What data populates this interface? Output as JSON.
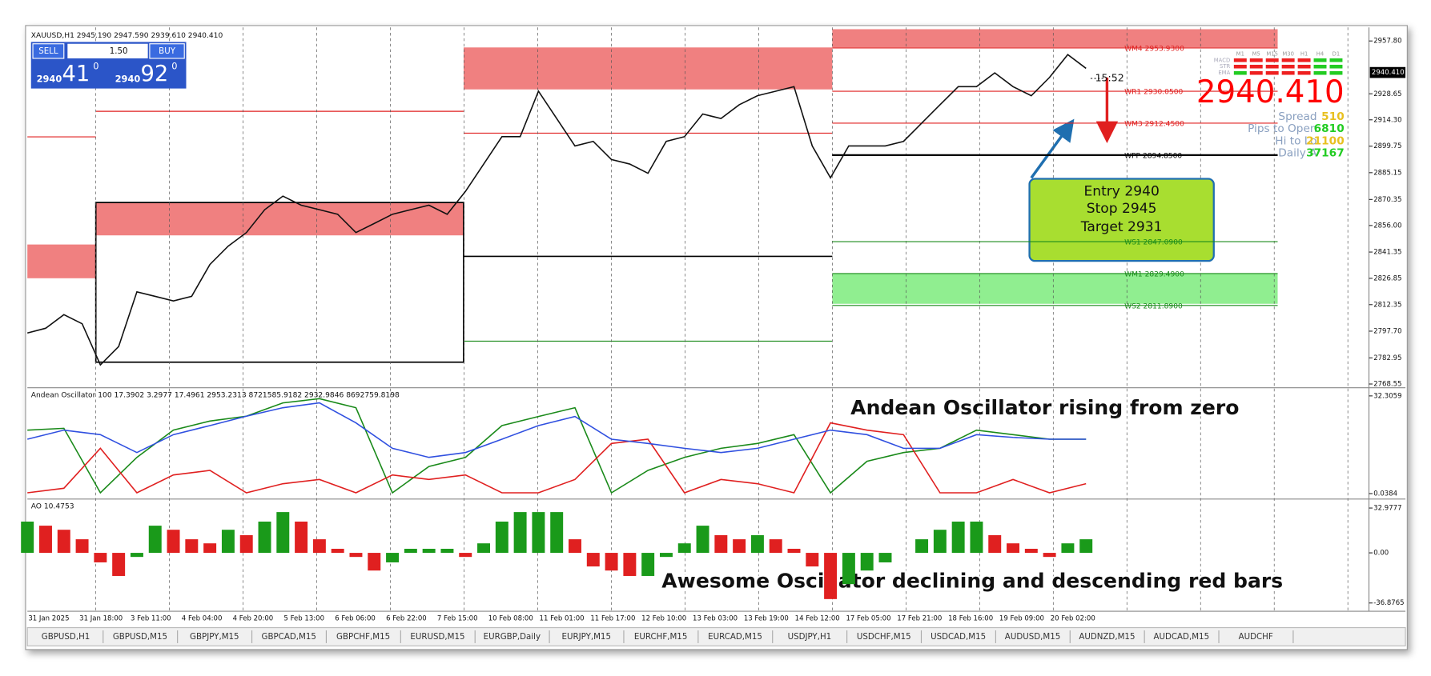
{
  "header": "XAUUSD,H1  2945.190 2947.590 2939.610 2940.410",
  "trade_panel": {
    "sell": "SELL",
    "lots": "1.50",
    "buy": "BUY",
    "bid_prefix": "2940",
    "bid_big": "41",
    "bid_sup": "0",
    "ask_prefix": "2940",
    "ask_big": "92",
    "ask_sup": "0"
  },
  "chart_data": [
    {
      "type": "line",
      "color": "#111111",
      "values": [
        2796.7,
        2799.3,
        2806.8,
        2801.8,
        2779.1,
        2789.2,
        2819.4,
        2816.9,
        2814.4,
        2816.9,
        2834.5,
        2844.6,
        2852.1,
        2864.7,
        2872.2,
        2867.2,
        2864.7,
        2862.2,
        2852.1,
        2857.1,
        2862.2,
        2864.7,
        2867.2,
        2862.2,
        2874.8,
        2889.9,
        2905.0,
        2905.0,
        2930.1,
        2915.0,
        2899.9,
        2902.4,
        2892.4,
        2889.9,
        2884.8,
        2902.4,
        2905.0,
        2917.5,
        2915.0,
        2922.6,
        2927.6,
        2930.1,
        2932.6,
        2899.9,
        2882.3,
        2899.9,
        2899.9,
        2899.9,
        2902.4,
        2912.5,
        2922.6,
        2932.6,
        2932.6,
        2940.2,
        2932.6,
        2927.6,
        2937.7,
        2950.3,
        2942.7
      ],
      "ylim": [
        2766.5,
        2964.3
      ],
      "yticks": [
        {
          "value": 2957.8,
          "label": "2957.80"
        },
        2928.65,
        {
          "value": 2914.3,
          "label": "2914.30"
        },
        2899.75,
        2885.15,
        2870.35,
        {
          "value": 2856,
          "label": "2856.00"
        },
        2841.35,
        2826.85,
        2812.35,
        {
          "value": 2797.7,
          "label": "2797.70"
        },
        2782.95,
        2768.55
      ],
      "grid": true,
      "current_price": {
        "value": 2940.41,
        "label": "2940.410"
      },
      "countdown": "15:52",
      "levels": [
        {
          "label": "WM4 2953.9300",
          "value": 2953.93,
          "color": "#e02020"
        },
        {
          "label": "WR1 2930.0500",
          "value": 2930.05,
          "color": "#e02020"
        },
        {
          "label": "WM3 2912.4500",
          "value": 2912.45,
          "color": "#e02020"
        },
        {
          "label": "WPP 2894.8500",
          "value": 2894.85,
          "color": "#000000"
        },
        {
          "label": "WS1 2847.0900",
          "value": 2847.09,
          "color": "#1a8a1a"
        },
        {
          "label": "WM1 2829.4900",
          "value": 2829.49,
          "color": "#1a8a1a"
        },
        {
          "label": "WS2 2811.8900",
          "value": 2811.89,
          "color": "#1a8a1a"
        }
      ]
    },
    {
      "type": "line",
      "title": "Andean Oscillator 100 17.3902 3.2977 17.4961 2953.2313 8721585.9182 2932.9846 8692759.8198",
      "annotation": "Andean Oscillator rising from zero",
      "ylim": [
        -1.15,
        33.5
      ],
      "yticks": [
        32.3059,
        0.0384
      ],
      "series": [
        {
          "color": "#1a8a1a",
          "values": [
            21,
            21.6,
            0.3,
            12,
            21,
            24,
            25.6,
            30,
            31.4,
            28.4,
            0.3,
            9,
            12,
            22.5,
            25.5,
            28.4,
            0.3,
            7.7,
            12,
            15,
            16.6,
            19.5,
            0.3,
            10.7,
            13.6,
            15,
            21,
            19.5,
            18,
            18
          ]
        },
        {
          "color": "#e02020",
          "values": [
            0.3,
            1.8,
            15,
            0.3,
            6.2,
            7.7,
            0.3,
            3.3,
            4.7,
            0.3,
            6.2,
            4.7,
            6.2,
            0.3,
            0.3,
            4.7,
            16.6,
            18,
            0.3,
            4.7,
            3.3,
            0.3,
            23.4,
            21,
            19.5,
            0.3,
            0.3,
            4.7,
            0.3,
            3.3
          ]
        },
        {
          "color": "#3050e0",
          "values": [
            18,
            21,
            19.5,
            13.6,
            19.5,
            22.5,
            25.6,
            28.4,
            30,
            23.4,
            15,
            12,
            13.6,
            18,
            22.5,
            25.5,
            18,
            16.6,
            15,
            13.6,
            15,
            18,
            21,
            19.5,
            15,
            15,
            19.5,
            18.6,
            18,
            18
          ]
        }
      ]
    },
    {
      "type": "bar",
      "title": "AO 10.4753",
      "annotation": "Awesome Oscillator declining and descending red bars",
      "ylim": [
        -41.6,
        37.6
      ],
      "yticks": [
        32.9777,
        {
          "value": 0,
          "label": "0.00"
        },
        -36.8765
      ],
      "colors": {
        "up": "#1a9a1a",
        "down": "#e02020"
      },
      "values": [
        23,
        20,
        17,
        10,
        -7,
        -17,
        -3,
        20,
        17,
        10,
        7,
        17,
        13,
        23,
        30,
        23,
        10,
        3,
        -3,
        -13,
        -7,
        3,
        3,
        3,
        -3,
        7,
        23,
        30,
        30,
        30,
        10,
        -10,
        -13,
        -17,
        -17,
        -3,
        7,
        20,
        13,
        10,
        13,
        10,
        3,
        -10,
        -34,
        -23,
        -13,
        -7,
        0,
        10,
        17,
        23,
        23,
        13,
        7,
        3,
        -3,
        7,
        10
      ]
    }
  ],
  "time_axis": [
    "31 Jan 2025",
    "31 Jan 18:00",
    "3 Feb 11:00",
    "4 Feb 04:00",
    "4 Feb 20:00",
    "5 Feb 13:00",
    "6 Feb 06:00",
    "6 Feb 22:00",
    "7 Feb 15:00",
    "10 Feb 08:00",
    "11 Feb 01:00",
    "11 Feb 17:00",
    "12 Feb 10:00",
    "13 Feb 03:00",
    "13 Feb 19:00",
    "14 Feb 12:00",
    "17 Feb 05:00",
    "17 Feb 21:00",
    "18 Feb 16:00",
    "19 Feb 09:00",
    "20 Feb 02:00"
  ],
  "info_panel": {
    "rows": [
      "MACD",
      "STR",
      "EMA"
    ],
    "timeframes": [
      "M1",
      "M5",
      "M15",
      "M30",
      "H1",
      "H4",
      "D1"
    ],
    "price": "2940.410",
    "stats": [
      {
        "label": "Spread",
        "value": "510"
      },
      {
        "label": "Pips to Open",
        "value": "6810"
      },
      {
        "label": "Hi to Lo",
        "value": "21100"
      },
      {
        "label": "Daily A",
        "value": "37167"
      }
    ]
  },
  "trade_box": [
    "Entry 2940",
    "Stop 2945",
    "Target 2931"
  ],
  "tabs": [
    "GBPUSD,H1",
    "GBPUSD,M15",
    "GBPJPY,M15",
    "GBPCAD,M15",
    "GBPCHF,M15",
    "EURUSD,M15",
    "EURGBP,Daily",
    "EURJPY,M15",
    "EURCHF,M15",
    "EURCAD,M15",
    "USDJPY,H1",
    "USDCHF,M15",
    "USDCAD,M15",
    "AUDUSD,M15",
    "AUDNZD,M15",
    "AUDCAD,M15",
    "AUDCHF"
  ]
}
